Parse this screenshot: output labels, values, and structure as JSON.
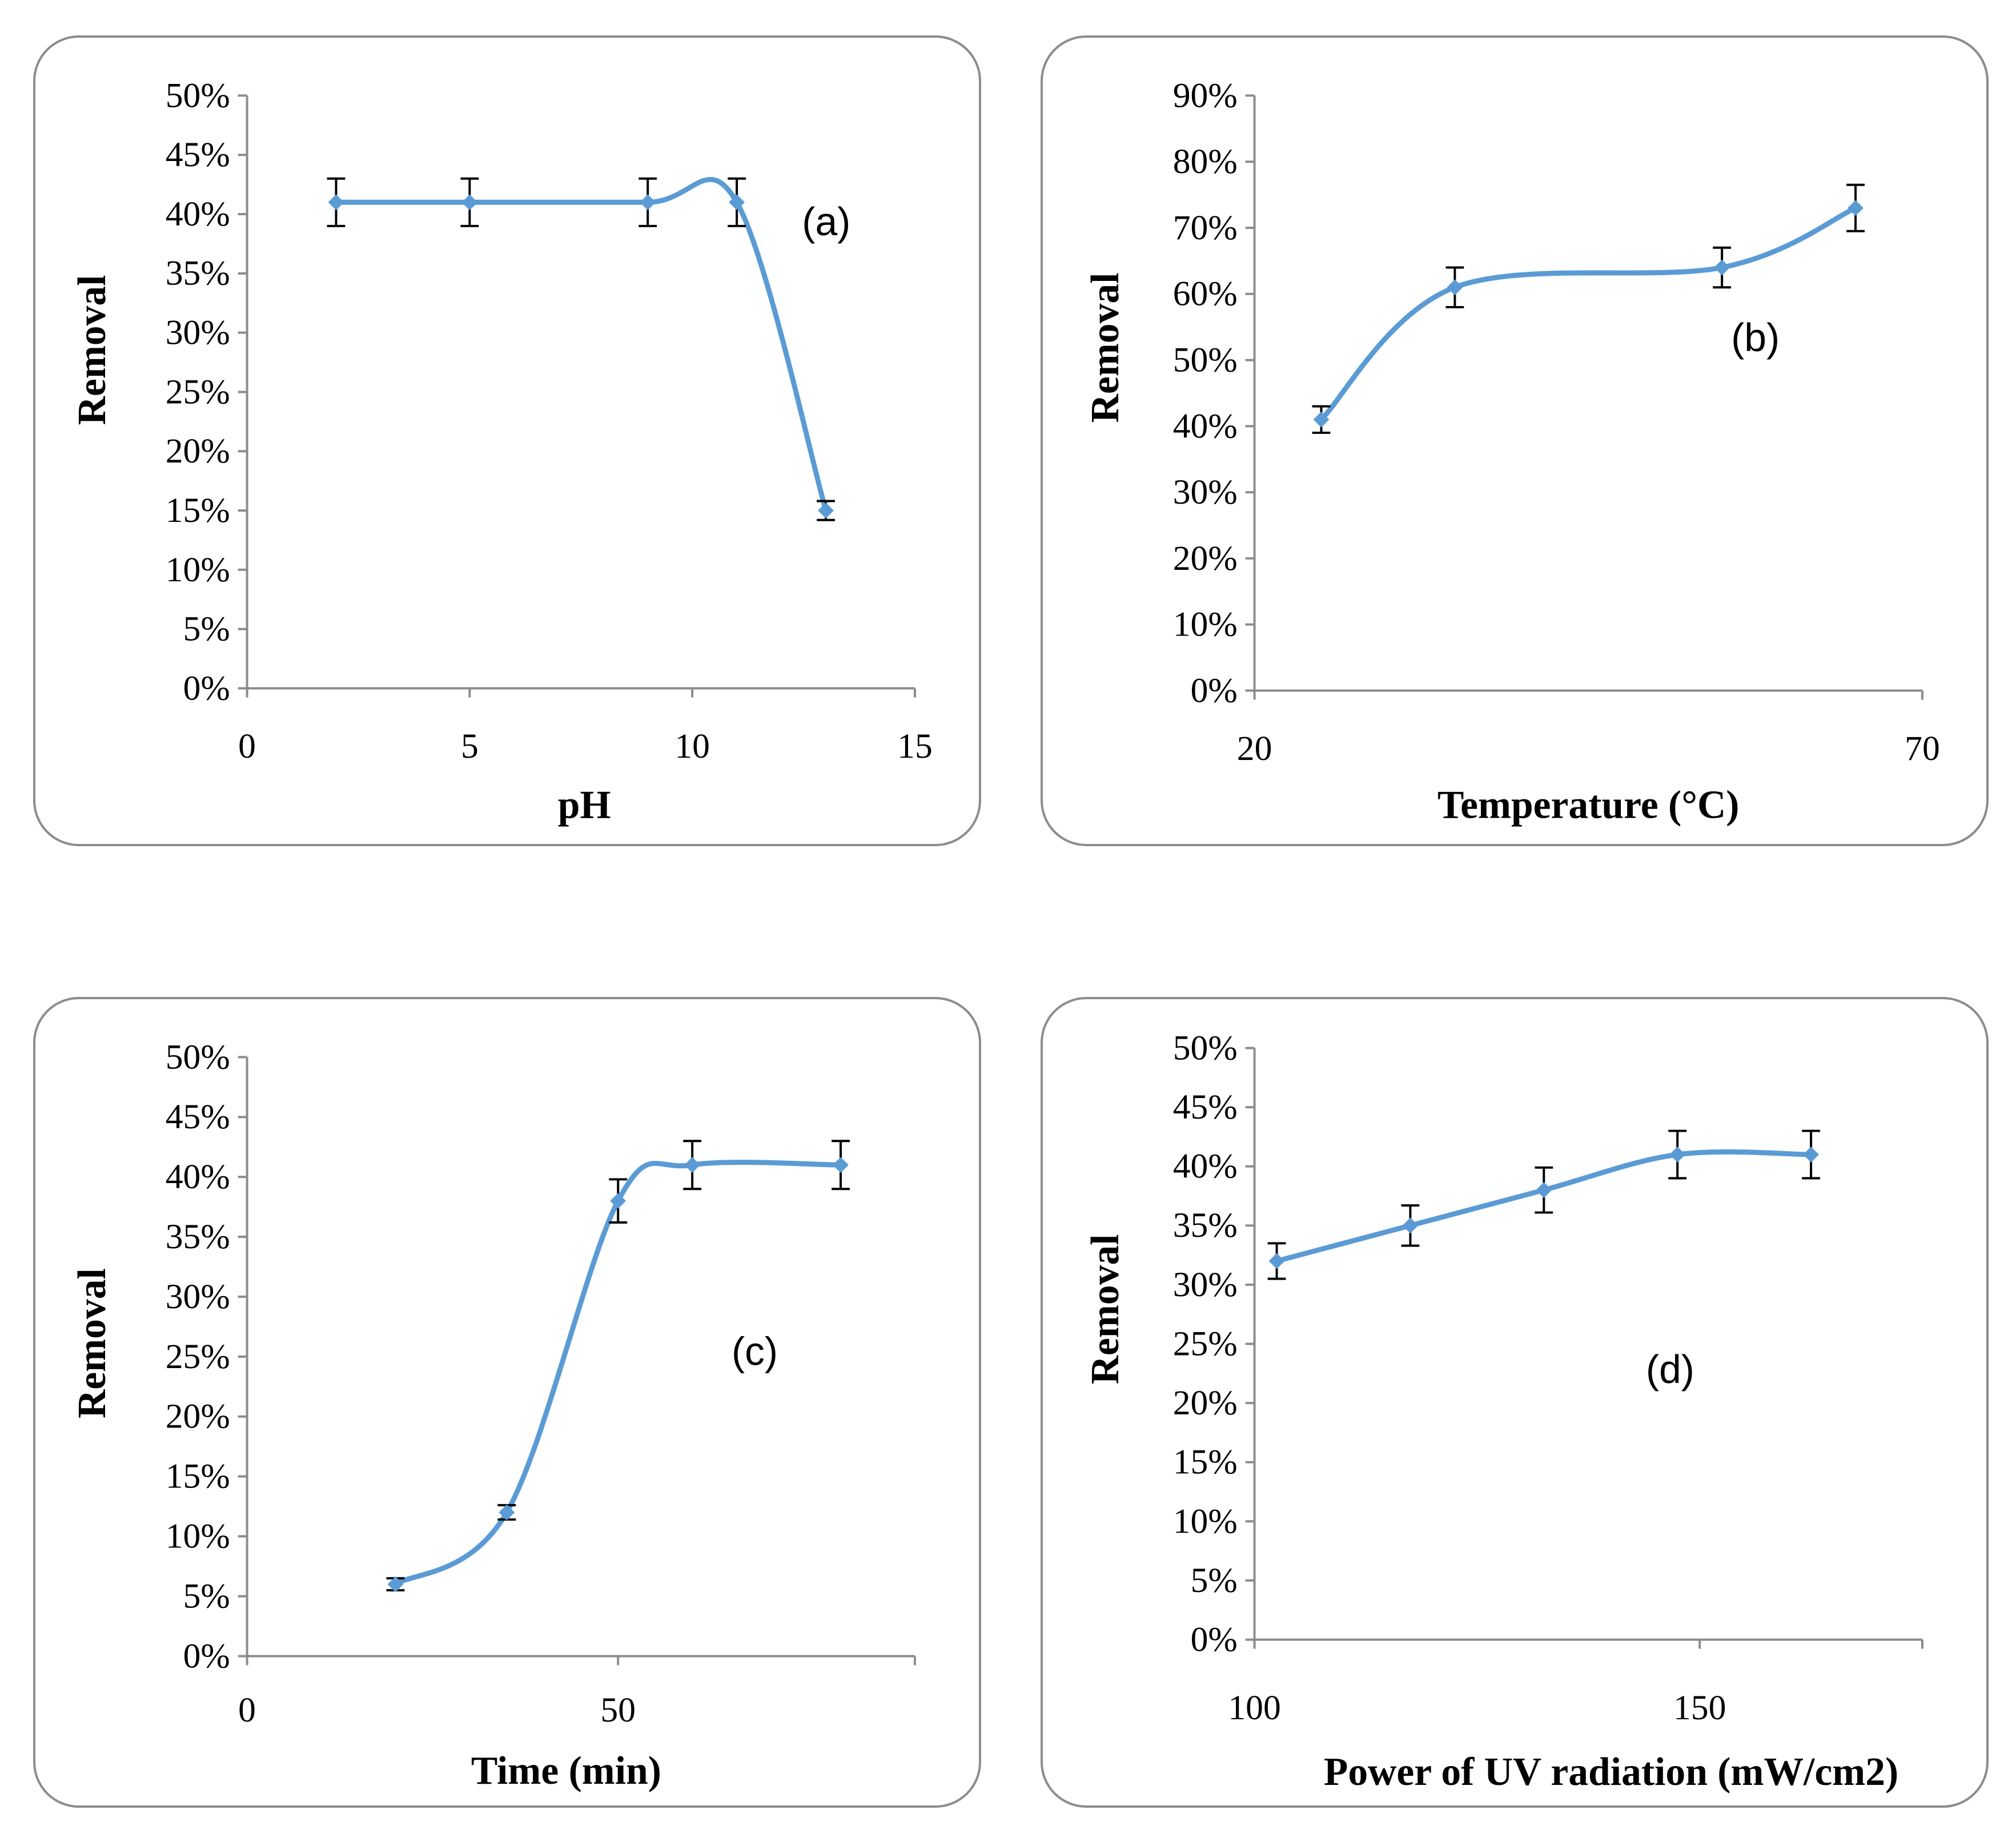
{
  "chart_data": [
    {
      "panel": "a",
      "type": "line",
      "smooth": true,
      "annotation": "(a)",
      "xlabel": "pH",
      "ylabel": "Removal",
      "xlim": [
        0,
        15
      ],
      "xticks": [
        0,
        5,
        10,
        15
      ],
      "xtick_labels": [
        "0",
        "5",
        "10",
        "15"
      ],
      "ylim": [
        0,
        50
      ],
      "yticks": [
        0,
        5,
        10,
        15,
        20,
        25,
        30,
        35,
        40,
        45,
        50
      ],
      "ytick_labels": [
        "0%",
        "5%",
        "10%",
        "15%",
        "20%",
        "25%",
        "30%",
        "35%",
        "40%",
        "45%",
        "50%"
      ],
      "series": [
        {
          "name": "Removal",
          "x": [
            2,
            5,
            9,
            11,
            13
          ],
          "y": [
            41,
            41,
            41,
            41,
            15
          ],
          "error": [
            2,
            2,
            2,
            2,
            0.8
          ]
        }
      ],
      "color": "#5b9bd5"
    },
    {
      "panel": "b",
      "type": "line",
      "smooth": true,
      "annotation": "(b)",
      "xlabel": "Temperature (°C)",
      "ylabel": "Removal",
      "xlim": [
        20,
        70
      ],
      "xticks": [
        20,
        70
      ],
      "xtick_labels": [
        "20",
        "70"
      ],
      "ylim": [
        0,
        90
      ],
      "yticks": [
        0,
        10,
        20,
        30,
        40,
        50,
        60,
        70,
        80,
        90
      ],
      "ytick_labels": [
        "0%",
        "10%",
        "20%",
        "30%",
        "40%",
        "50%",
        "60%",
        "70%",
        "80%",
        "90%"
      ],
      "series": [
        {
          "name": "Removal",
          "x": [
            25,
            35,
            55,
            65
          ],
          "y": [
            41,
            61,
            64,
            73
          ],
          "error": [
            2,
            3,
            3,
            3.5
          ]
        }
      ],
      "color": "#5b9bd5"
    },
    {
      "panel": "c",
      "type": "line",
      "smooth": true,
      "annotation": "(c)",
      "xlabel": "Time (min)",
      "ylabel": "Removal",
      "xlim": [
        0,
        90
      ],
      "xticks": [
        0,
        50
      ],
      "xtick_labels": [
        "0",
        "50"
      ],
      "ylim": [
        0,
        50
      ],
      "yticks": [
        0,
        5,
        10,
        15,
        20,
        25,
        30,
        35,
        40,
        45,
        50
      ],
      "ytick_labels": [
        "0%",
        "5%",
        "10%",
        "15%",
        "20%",
        "25%",
        "30%",
        "35%",
        "40%",
        "45%",
        "50%"
      ],
      "series": [
        {
          "name": "Removal",
          "x": [
            20,
            35,
            50,
            60,
            80
          ],
          "y": [
            6,
            12,
            38,
            41,
            41
          ],
          "error": [
            0.5,
            0.6,
            1.8,
            2,
            2
          ]
        }
      ],
      "color": "#5b9bd5"
    },
    {
      "panel": "d",
      "type": "line",
      "smooth": true,
      "annotation": "(d)",
      "xlabel": "Power of UV radiation (mW/cm2)",
      "ylabel": "Removal",
      "xlim": [
        100,
        175
      ],
      "xticks": [
        100,
        150
      ],
      "xtick_labels": [
        "100",
        "150"
      ],
      "ylim": [
        0,
        50
      ],
      "yticks": [
        0,
        5,
        10,
        15,
        20,
        25,
        30,
        35,
        40,
        45,
        50
      ],
      "ytick_labels": [
        "0%",
        "5%",
        "10%",
        "15%",
        "20%",
        "25%",
        "30%",
        "35%",
        "40%",
        "45%",
        "50%"
      ],
      "series": [
        {
          "name": "Removal",
          "x": [
            102.5,
            117.5,
            132.5,
            147.5,
            162.5
          ],
          "y": [
            32,
            35,
            38,
            41,
            41
          ],
          "error": [
            1.5,
            1.7,
            1.9,
            2,
            2
          ]
        }
      ],
      "color": "#5b9bd5"
    }
  ]
}
